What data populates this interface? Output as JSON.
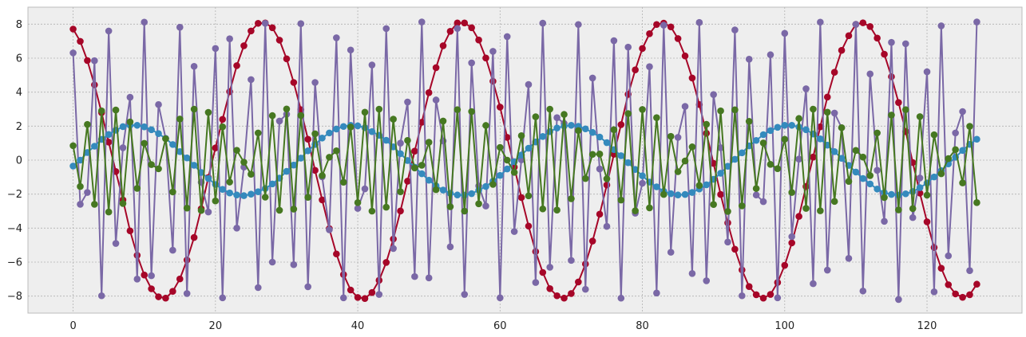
{
  "chart_data": {
    "type": "line",
    "title": "",
    "xlabel": "",
    "ylabel": "",
    "xlim": [
      -6.35,
      133.35
    ],
    "ylim": [
      -9,
      9
    ],
    "xticks": [
      0,
      20,
      40,
      60,
      80,
      100,
      120
    ],
    "yticks": [
      -8,
      -6,
      -4,
      -2,
      0,
      2,
      4,
      6,
      8
    ],
    "xtick_labels": [
      "0",
      "20",
      "40",
      "60",
      "80",
      "100",
      "120"
    ],
    "ytick_labels": [
      "−8",
      "−6",
      "−4",
      "−2",
      "0",
      "2",
      "4",
      "6",
      "8"
    ],
    "grid": true,
    "legend": "none",
    "background": "#eeeeee",
    "x": [
      0,
      1,
      2,
      3,
      4,
      5,
      6,
      7,
      8,
      9,
      10,
      11,
      12,
      13,
      14,
      15,
      16,
      17,
      18,
      19,
      20,
      21,
      22,
      23,
      24,
      25,
      26,
      27,
      28,
      29,
      30,
      31,
      32,
      33,
      34,
      35,
      36,
      37,
      38,
      39,
      40,
      41,
      42,
      43,
      44,
      45,
      46,
      47,
      48,
      49,
      50,
      51,
      52,
      53,
      54,
      55,
      56,
      57,
      58,
      59,
      60,
      61,
      62,
      63,
      64,
      65,
      66,
      67,
      68,
      69,
      70,
      71,
      72,
      73,
      74,
      75,
      76,
      77,
      78,
      79,
      80,
      81,
      82,
      83,
      84,
      85,
      86,
      87,
      88,
      89,
      90,
      91,
      92,
      93,
      94,
      95,
      96,
      97,
      98,
      99,
      100,
      101,
      102,
      103,
      104,
      105,
      106,
      107,
      108,
      109,
      110,
      111,
      112,
      113,
      114,
      115,
      116,
      117,
      118,
      119,
      120,
      121,
      122,
      123,
      124,
      125,
      126,
      127
    ],
    "series": [
      {
        "color": "#a60628",
        "values": [
          7.71,
          6.99,
          5.86,
          4.43,
          2.79,
          1.06,
          -0.67,
          -2.34,
          -4.16,
          -5.6,
          -6.76,
          -7.57,
          -8.04,
          -8.12,
          -7.72,
          -6.99,
          -5.88,
          -4.55,
          -2.86,
          -1.02,
          0.72,
          2.4,
          4.03,
          5.56,
          6.73,
          7.6,
          8.05,
          8.07,
          7.79,
          7.06,
          5.96,
          4.57,
          2.97,
          1.23,
          -0.6,
          -2.34,
          -4.03,
          -5.52,
          -6.73,
          -7.64,
          -8.08,
          -8.14,
          -7.79,
          -7.07,
          -6.02,
          -4.64,
          -2.99,
          -1.24,
          0.53,
          2.23,
          3.97,
          5.44,
          6.73,
          7.58,
          8.07,
          8.07,
          7.79,
          7.07,
          6.01,
          4.64,
          3.12,
          1.34,
          -0.41,
          -2.2,
          -3.88,
          -5.38,
          -6.61,
          -7.56,
          -7.98,
          -8.12,
          -7.85,
          -7.17,
          -6.11,
          -4.76,
          -3.18,
          -1.46,
          0.35,
          2.09,
          3.87,
          5.31,
          6.57,
          7.44,
          7.98,
          8.06,
          7.84,
          7.15,
          6.13,
          4.83,
          3.27,
          1.58,
          -0.19,
          -2.02,
          -3.69,
          -5.24,
          -6.46,
          -7.44,
          -7.92,
          -8.12,
          -7.9,
          -7.2,
          -6.19,
          -4.87,
          -3.31,
          -1.55,
          0.18,
          1.96,
          3.71,
          5.17,
          6.46,
          7.32,
          7.99,
          8.08,
          7.86,
          7.18,
          6.23,
          4.91,
          3.39,
          1.68,
          -0.14,
          -1.94,
          -3.63,
          -5.14,
          -6.36,
          -7.33,
          -7.87,
          -8.07,
          -7.92,
          -7.3
        ]
      },
      {
        "color": "#7a68a6",
        "values": [
          6.31,
          -2.6,
          -1.9,
          5.85,
          -7.98,
          7.6,
          -4.9,
          0.73,
          3.7,
          -7.0,
          8.12,
          -6.8,
          3.27,
          1.28,
          -5.3,
          7.82,
          -7.85,
          5.52,
          -1.3,
          -3.05,
          6.57,
          -8.1,
          7.14,
          -4.0,
          -0.41,
          4.74,
          -7.5,
          8.05,
          -6.0,
          2.3,
          2.7,
          -6.15,
          8.03,
          -7.45,
          4.57,
          -0.98,
          -4.1,
          7.2,
          -8.1,
          6.48,
          -2.84,
          -1.69,
          5.6,
          -7.9,
          7.74,
          -5.2,
          1.0,
          3.42,
          -6.85,
          8.13,
          -6.93,
          3.54,
          1.13,
          -5.1,
          7.75,
          -7.9,
          5.72,
          -1.52,
          -2.7,
          6.4,
          -8.1,
          7.27,
          -4.2,
          0.02,
          4.45,
          -7.2,
          8.06,
          -6.3,
          2.5,
          2.16,
          -5.9,
          7.98,
          -7.6,
          4.83,
          -0.52,
          -3.9,
          7.03,
          -8.12,
          6.65,
          -3.12,
          -1.36,
          5.5,
          -7.82,
          7.94,
          -5.42,
          1.34,
          3.16,
          -6.67,
          8.1,
          -7.1,
          3.86,
          0.73,
          -4.82,
          7.66,
          -7.98,
          5.94,
          -2.05,
          -2.44,
          6.2,
          -8.1,
          7.46,
          -4.5,
          0.06,
          4.2,
          -7.27,
          8.12,
          -6.47,
          2.77,
          1.91,
          -5.78,
          7.99,
          -7.7,
          5.07,
          -0.6,
          -3.6,
          6.93,
          -8.2,
          6.85,
          -3.38,
          -1.05,
          5.2,
          -7.75,
          7.9,
          -5.63,
          1.6,
          2.86,
          -6.5,
          8.13
        ]
      },
      {
        "color": "#348abd",
        "values": [
          -0.35,
          0.0,
          0.45,
          0.82,
          1.22,
          1.51,
          1.76,
          1.97,
          2.05,
          2.05,
          1.96,
          1.79,
          1.56,
          1.27,
          0.92,
          0.5,
          0.13,
          -0.3,
          -0.73,
          -1.08,
          -1.43,
          -1.72,
          -1.93,
          -2.05,
          -2.09,
          -2.0,
          -1.86,
          -1.67,
          -1.4,
          -1.06,
          -0.66,
          -0.29,
          0.12,
          0.55,
          0.92,
          1.3,
          1.6,
          1.83,
          1.98,
          2.05,
          2.02,
          1.91,
          1.68,
          1.46,
          1.17,
          0.78,
          0.38,
          -0.02,
          -0.41,
          -0.8,
          -1.18,
          -1.51,
          -1.76,
          -1.95,
          -2.05,
          -2.06,
          -1.97,
          -1.77,
          -1.55,
          -1.24,
          -0.9,
          -0.52,
          -0.09,
          0.3,
          0.7,
          1.07,
          1.39,
          1.68,
          1.89,
          2.0,
          2.05,
          1.99,
          1.84,
          1.63,
          1.36,
          1.03,
          0.62,
          0.26,
          -0.15,
          -0.55,
          -0.92,
          -1.29,
          -1.57,
          -1.83,
          -1.97,
          -2.05,
          -2.02,
          -1.9,
          -1.7,
          -1.45,
          -1.13,
          -0.77,
          -0.36,
          0.05,
          0.43,
          0.84,
          1.16,
          1.5,
          1.74,
          1.93,
          2.05,
          2.05,
          1.95,
          1.79,
          1.54,
          1.25,
          0.88,
          0.5,
          0.11,
          -0.31,
          -0.7,
          -1.08,
          -1.4,
          -1.7,
          -1.91,
          -2.02,
          -2.06,
          -1.98,
          -1.85,
          -1.62,
          -1.35,
          -0.99,
          -0.62,
          -0.22,
          0.17,
          0.57,
          0.93,
          1.23
        ]
      },
      {
        "color": "#467821",
        "values": [
          0.85,
          -1.55,
          2.1,
          -2.6,
          2.9,
          -3.05,
          2.95,
          -2.55,
          2.25,
          -1.66,
          0.99,
          -0.26,
          -0.51,
          1.26,
          -1.87,
          2.42,
          -2.82,
          3.0,
          -2.96,
          2.81,
          -2.4,
          1.96,
          -1.29,
          0.58,
          -0.12,
          -0.83,
          1.6,
          -2.18,
          2.62,
          -2.95,
          3.01,
          -2.88,
          2.63,
          -2.19,
          1.55,
          -0.91,
          0.17,
          0.55,
          -1.3,
          1.95,
          -2.5,
          2.82,
          -3.0,
          3.0,
          -2.77,
          2.41,
          -1.86,
          1.16,
          -0.46,
          -0.3,
          1.05,
          -1.74,
          2.3,
          -2.74,
          2.97,
          -3.0,
          2.86,
          -2.57,
          2.04,
          -1.43,
          0.75,
          0.0,
          -0.72,
          1.44,
          -2.1,
          2.55,
          -2.87,
          3.0,
          -2.94,
          2.69,
          -2.27,
          1.74,
          -1.08,
          0.34,
          0.36,
          -1.1,
          1.79,
          -2.35,
          2.74,
          -2.98,
          2.98,
          -2.81,
          2.5,
          -2.02,
          1.4,
          -0.68,
          -0.05,
          0.78,
          -1.49,
          2.11,
          -2.61,
          2.9,
          -3.02,
          2.96,
          -2.69,
          2.28,
          -1.67,
          1.01,
          -0.25,
          -0.5,
          1.23,
          -1.9,
          2.45,
          -2.84,
          3.0,
          -2.98,
          2.82,
          -2.43,
          1.91,
          -1.25,
          0.57,
          0.18,
          -0.91,
          1.6,
          -2.2,
          2.65,
          -2.93,
          2.97,
          -2.85,
          2.56,
          -2.06,
          1.49,
          -0.8,
          0.09,
          0.62,
          -1.34,
          1.99,
          -2.5
        ]
      }
    ]
  }
}
